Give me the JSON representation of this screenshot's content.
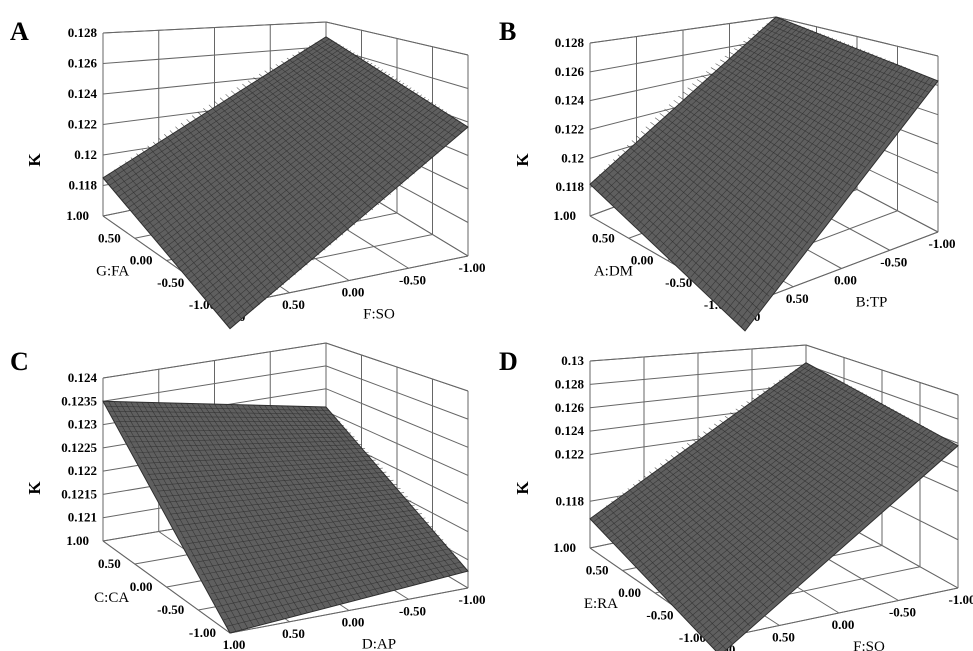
{
  "figure": {
    "background": "#ffffff",
    "surface_fill": "#5f5f5f",
    "surface_mesh": "#2e2e2e",
    "frame_color": "#666666"
  },
  "chart_data": [
    {
      "panel": "A",
      "type": "surface",
      "zlabel": "K",
      "x_axis": {
        "label": "F:SO",
        "ticks": [
          "1.00",
          "0.50",
          "0.00",
          "-0.50",
          "-1.00"
        ],
        "range": [
          -1,
          1
        ]
      },
      "y_axis": {
        "label": "G:FA",
        "ticks": [
          "1.00",
          "0.50",
          "0.00",
          "-0.50",
          "-1.00"
        ],
        "range": [
          -1,
          1
        ]
      },
      "z_axis": {
        "ticks": [
          "0.118",
          "0.12",
          "0.122",
          "0.124",
          "0.126",
          "0.128"
        ],
        "range": [
          0.116,
          0.128
        ]
      },
      "surface_corners": [
        {
          "x": 1,
          "y": 1,
          "z": 0.1185
        },
        {
          "x": 1,
          "y": -1,
          "z": 0.1145
        },
        {
          "x": -1,
          "y": -1,
          "z": 0.1237
        },
        {
          "x": -1,
          "y": 1,
          "z": 0.1268
        }
      ]
    },
    {
      "panel": "B",
      "type": "surface",
      "zlabel": "K",
      "x_axis": {
        "label": "B:TP",
        "ticks": [
          "1.00",
          "0.50",
          "0.00",
          "-0.50",
          "-1.00"
        ],
        "range": [
          -1,
          1
        ]
      },
      "y_axis": {
        "label": "A:DM",
        "ticks": [
          "1.00",
          "0.50",
          "0.00",
          "-0.50",
          "-1.00"
        ],
        "range": [
          -1,
          1
        ]
      },
      "z_axis": {
        "ticks": [
          "0.118",
          "0.12",
          "0.122",
          "0.124",
          "0.126",
          "0.128"
        ],
        "range": [
          0.116,
          0.128
        ]
      },
      "surface_corners": [
        {
          "x": 1,
          "y": 1,
          "z": 0.1182
        },
        {
          "x": 1,
          "y": -1,
          "z": 0.1145
        },
        {
          "x": -1,
          "y": -1,
          "z": 0.1263
        },
        {
          "x": -1,
          "y": 1,
          "z": 0.128
        }
      ]
    },
    {
      "panel": "C",
      "type": "surface",
      "zlabel": "K",
      "x_axis": {
        "label": "D:AP",
        "ticks": [
          "1.00",
          "0.50",
          "0.00",
          "-0.50",
          "-1.00"
        ],
        "range": [
          -1,
          1
        ]
      },
      "y_axis": {
        "label": "C:CA",
        "ticks": [
          "1.00",
          "0.50",
          "0.00",
          "-0.50",
          "-1.00"
        ],
        "range": [
          -1,
          1
        ]
      },
      "z_axis": {
        "ticks": [
          "0.121",
          "0.1215",
          "0.122",
          "0.1225",
          "0.123",
          "0.1235",
          "0.124"
        ],
        "range": [
          0.1205,
          0.124
        ]
      },
      "surface_corners": [
        {
          "x": 1,
          "y": 1,
          "z": 0.1235
        },
        {
          "x": 1,
          "y": -1,
          "z": 0.1205
        },
        {
          "x": -1,
          "y": -1,
          "z": 0.1208
        },
        {
          "x": -1,
          "y": 1,
          "z": 0.1226
        }
      ]
    },
    {
      "panel": "D",
      "type": "surface",
      "zlabel": "K",
      "x_axis": {
        "label": "F:SO",
        "ticks": [
          "1.00",
          "0.50",
          "0.00",
          "-0.50",
          "-1.00"
        ],
        "range": [
          -1,
          1
        ]
      },
      "y_axis": {
        "label": "E:RA",
        "ticks": [
          "1.00",
          "0.50",
          "0.00",
          "-0.50",
          "-1.00"
        ],
        "range": [
          -1,
          1
        ]
      },
      "z_axis": {
        "ticks": [
          "0.118",
          "0.122",
          "0.124",
          "0.126",
          "0.128",
          "0.13"
        ],
        "range": [
          0.114,
          0.13
        ]
      },
      "surface_corners": [
        {
          "x": 1,
          "y": 1,
          "z": 0.1165
        },
        {
          "x": 1,
          "y": -1,
          "z": 0.1128
        },
        {
          "x": -1,
          "y": -1,
          "z": 0.1258
        },
        {
          "x": -1,
          "y": 1,
          "z": 0.1282
        }
      ]
    }
  ]
}
